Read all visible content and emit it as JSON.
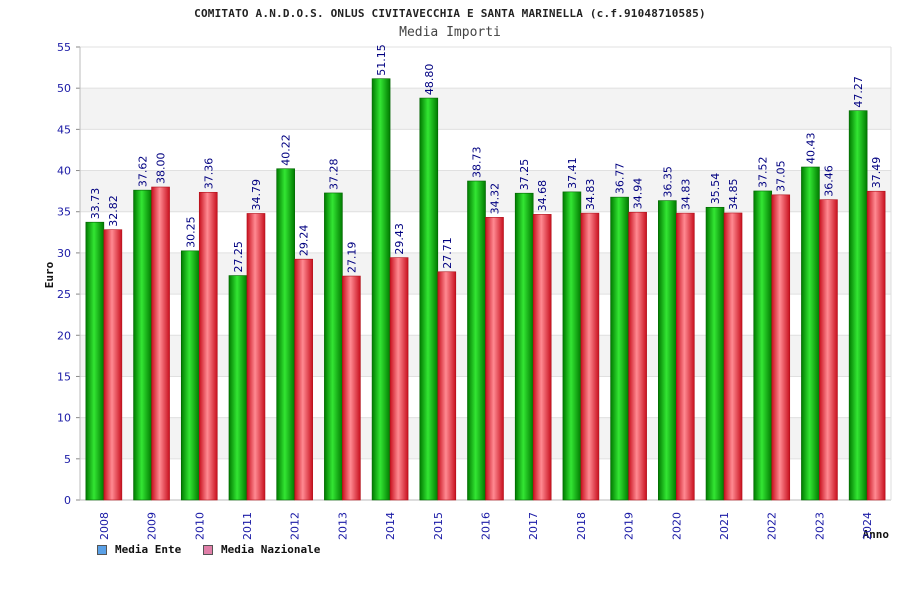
{
  "chart_data": {
    "type": "bar",
    "title": "COMITATO A.N.D.O.S. ONLUS CIVITAVECCHIA E SANTA MARINELLA (c.f.91048710585)",
    "subtitle": "Media Importi",
    "xlabel": "Anno",
    "ylabel": "Euro",
    "ylim": [
      0,
      55
    ],
    "yticks": [
      0,
      5,
      10,
      15,
      20,
      25,
      30,
      35,
      40,
      45,
      50,
      55
    ],
    "grid": true,
    "legend_position": "bottom-left",
    "categories": [
      "2008",
      "2009",
      "2010",
      "2011",
      "2012",
      "2013",
      "2014",
      "2015",
      "2016",
      "2017",
      "2018",
      "2019",
      "2020",
      "2021",
      "2022",
      "2023",
      "2024"
    ],
    "series": [
      {
        "name": "Media Ente",
        "color": "#00b400",
        "legend_color": "#5aa0e6",
        "values": [
          33.73,
          37.62,
          30.25,
          27.25,
          40.22,
          37.28,
          51.15,
          48.8,
          38.73,
          37.25,
          37.41,
          36.77,
          36.35,
          35.54,
          37.52,
          40.43,
          47.27
        ],
        "labels": [
          "33.73",
          "37.62",
          "30.25",
          "27.25",
          "40.22",
          "37.28",
          "51.15",
          "48.80",
          "38.73",
          "37.25",
          "37.41",
          "36.77",
          "36.35",
          "35.54",
          "37.52",
          "40.43",
          "47.27"
        ]
      },
      {
        "name": "Media Nazionale",
        "color": "#e8303c",
        "legend_color": "#e07fa8",
        "values": [
          32.82,
          38.0,
          37.36,
          34.79,
          29.24,
          27.19,
          29.43,
          27.71,
          34.32,
          34.68,
          34.83,
          34.94,
          34.83,
          34.85,
          37.05,
          36.46,
          37.49
        ],
        "labels": [
          "32.82",
          "38.00",
          "37.36",
          "34.79",
          "29.24",
          "27.19",
          "29.43",
          "27.71",
          "34.32",
          "34.68",
          "34.83",
          "34.94",
          "34.83",
          "34.85",
          "37.05",
          "36.46",
          "37.49"
        ]
      }
    ]
  }
}
